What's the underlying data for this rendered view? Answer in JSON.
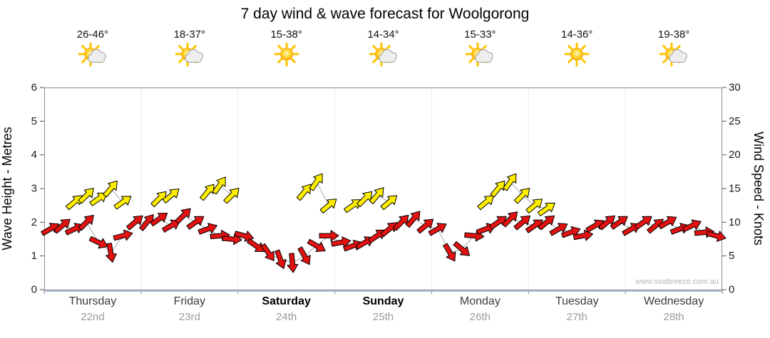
{
  "title": "7 day wind & wave forecast for Woolgorong",
  "watermark": "www.seabreeze.com.au",
  "days": [
    {
      "name": "Thursday",
      "date": "22nd",
      "temp": "26-46°",
      "icon": "sun-cloud",
      "weekend": false
    },
    {
      "name": "Friday",
      "date": "23rd",
      "temp": "18-37°",
      "icon": "sun-cloud",
      "weekend": false
    },
    {
      "name": "Saturday",
      "date": "24th",
      "temp": "15-38°",
      "icon": "sun",
      "weekend": true
    },
    {
      "name": "Sunday",
      "date": "25th",
      "temp": "14-34°",
      "icon": "sun-cloud",
      "weekend": true
    },
    {
      "name": "Monday",
      "date": "26th",
      "temp": "15-33°",
      "icon": "sun-cloud",
      "weekend": false
    },
    {
      "name": "Tuesday",
      "date": "27th",
      "temp": "14-36°",
      "icon": "sun",
      "weekend": false
    },
    {
      "name": "Wednesday",
      "date": "28th",
      "temp": "19-38°",
      "icon": "sun-cloud",
      "weekend": false
    }
  ],
  "colors": {
    "wind_arrow": "#e31212",
    "gust_arrow": "#ffee00",
    "arrow_outline": "#000000",
    "bottom_axis": "#a9c0dc",
    "connector_line": "#aaaaaa"
  },
  "chart_data": {
    "type": "scatter",
    "subtype": "wind-direction-arrows",
    "title": "7 day wind & wave forecast for Woolgorong",
    "grid": false,
    "legend": "none",
    "x_axis": {
      "categories": [
        "Thursday 22nd",
        "Friday 23rd",
        "Saturday 24th",
        "Sunday 25th",
        "Monday 26th",
        "Tuesday 27th",
        "Wednesday 28th"
      ],
      "slots_per_day": 8
    },
    "y_left": {
      "label": "Wave Height - Metres",
      "min": 0,
      "max": 6,
      "ticks": [
        0,
        1,
        2,
        3,
        4,
        5,
        6
      ]
    },
    "y_right": {
      "label": "Wind Speed - Knots",
      "min": 0,
      "max": 30,
      "ticks": [
        0,
        5,
        10,
        15,
        20,
        25,
        30
      ]
    },
    "series": [
      {
        "name": "wind",
        "color": "#e31212",
        "points": [
          [
            0,
            9,
            60
          ],
          [
            1,
            9.5,
            50
          ],
          [
            2,
            9,
            65
          ],
          [
            3,
            10,
            45
          ],
          [
            4,
            7,
            115
          ],
          [
            5,
            5.5,
            170
          ],
          [
            6,
            8,
            75
          ],
          [
            7,
            10,
            50
          ],
          [
            8,
            10,
            40
          ],
          [
            9,
            10.5,
            55
          ],
          [
            10,
            9.5,
            60
          ],
          [
            11,
            11,
            45
          ],
          [
            12,
            10,
            55
          ],
          [
            13,
            9,
            70
          ],
          [
            14,
            8,
            85
          ],
          [
            15,
            7.5,
            95
          ],
          [
            16,
            8,
            105
          ],
          [
            17,
            6.5,
            125
          ],
          [
            18,
            5.5,
            145
          ],
          [
            19,
            4.5,
            160
          ],
          [
            20,
            4,
            175
          ],
          [
            21,
            5,
            150
          ],
          [
            22,
            6.5,
            120
          ],
          [
            23,
            8,
            90
          ],
          [
            24,
            7,
            80
          ],
          [
            25,
            6.5,
            70
          ],
          [
            26,
            7,
            60
          ],
          [
            27,
            8,
            55
          ],
          [
            28,
            9,
            50
          ],
          [
            29,
            10,
            45
          ],
          [
            30,
            10.5,
            40
          ],
          [
            31,
            9.5,
            50
          ],
          [
            32,
            9,
            60
          ],
          [
            33,
            5.5,
            150
          ],
          [
            34,
            6,
            130
          ],
          [
            35,
            8,
            95
          ],
          [
            36,
            9,
            70
          ],
          [
            37,
            10,
            55
          ],
          [
            38,
            10.5,
            45
          ],
          [
            39,
            10,
            50
          ],
          [
            40,
            9.5,
            55
          ],
          [
            41,
            10,
            50
          ],
          [
            42,
            9,
            60
          ],
          [
            43,
            8.5,
            70
          ],
          [
            44,
            8,
            80
          ],
          [
            45,
            9.5,
            60
          ],
          [
            46,
            10,
            50
          ],
          [
            47,
            10,
            55
          ],
          [
            48,
            9,
            60
          ],
          [
            49,
            10,
            55
          ],
          [
            50,
            9.5,
            50
          ],
          [
            51,
            10,
            60
          ],
          [
            52,
            9,
            70
          ],
          [
            53,
            9.5,
            65
          ],
          [
            54,
            8.5,
            85
          ],
          [
            55,
            8,
            105
          ]
        ]
      },
      {
        "name": "gusts",
        "color": "#ffee00",
        "points": [
          [
            2,
            13,
            50
          ],
          [
            3,
            14,
            45
          ],
          [
            4,
            13.5,
            55
          ],
          [
            5,
            15,
            40
          ],
          [
            6,
            13,
            55
          ],
          [
            9,
            13.5,
            45
          ],
          [
            10,
            14,
            50
          ],
          [
            13,
            14.5,
            40
          ],
          [
            14,
            15.5,
            35
          ],
          [
            15,
            14,
            45
          ],
          [
            21,
            14.5,
            40
          ],
          [
            22,
            16,
            35
          ],
          [
            23,
            12.5,
            50
          ],
          [
            25,
            12.5,
            55
          ],
          [
            26,
            13.5,
            45
          ],
          [
            27,
            14,
            40
          ],
          [
            28,
            13,
            50
          ],
          [
            36,
            13,
            50
          ],
          [
            37,
            15,
            40
          ],
          [
            38,
            16,
            35
          ],
          [
            39,
            14,
            45
          ],
          [
            40,
            12.5,
            50
          ],
          [
            41,
            12,
            55
          ]
        ]
      }
    ]
  }
}
